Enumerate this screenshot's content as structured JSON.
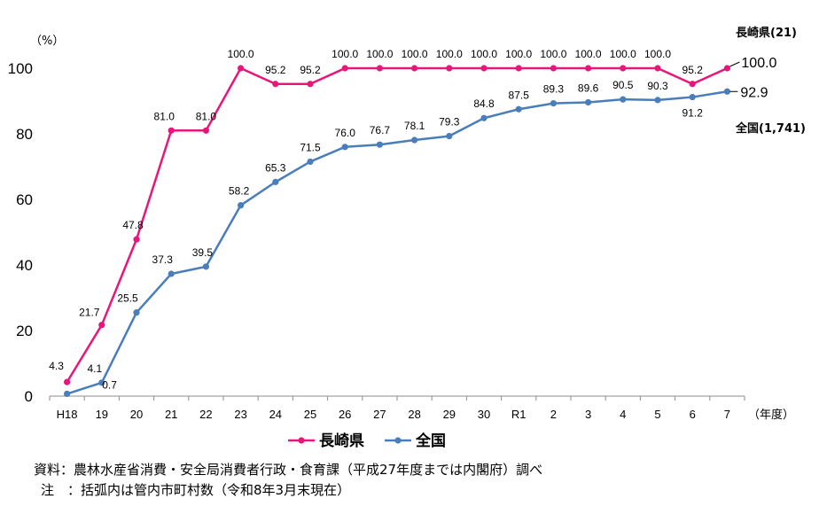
{
  "chart_data": {
    "type": "line",
    "ylim": [
      0,
      100
    ],
    "yticks": [
      0,
      20,
      40,
      60,
      80,
      100
    ],
    "y_unit": "（%）",
    "x_unit": "（年度）",
    "categories": [
      "H18",
      "19",
      "20",
      "21",
      "22",
      "23",
      "24",
      "25",
      "26",
      "27",
      "28",
      "29",
      "30",
      "R1",
      "2",
      "3",
      "4",
      "5",
      "6",
      "7"
    ],
    "series": [
      {
        "name": "長崎県",
        "end_label": "長崎県(21)",
        "color": "#e8167a",
        "values": [
          4.3,
          21.7,
          47.8,
          81.0,
          81.0,
          100.0,
          95.2,
          95.2,
          100.0,
          100.0,
          100.0,
          100.0,
          100.0,
          100.0,
          100.0,
          100.0,
          100.0,
          100.0,
          95.2,
          100.0
        ],
        "labels": [
          "4.3",
          "21.7",
          "47.8",
          "81.0",
          "81.0",
          "100.0",
          "95.2",
          "95.2",
          "100.0",
          "100.0",
          "100.0",
          "100.0",
          "100.0",
          "100.0",
          "100.0",
          "100.0",
          "100.0",
          "100.0",
          "95.2",
          "100.0"
        ]
      },
      {
        "name": "全国",
        "end_label": "全国(1,741)",
        "color": "#4a7ebb",
        "values": [
          0.7,
          4.1,
          25.5,
          37.3,
          39.5,
          58.2,
          65.3,
          71.5,
          76.0,
          76.7,
          78.1,
          79.3,
          84.8,
          87.5,
          89.3,
          89.6,
          90.5,
          90.3,
          91.2,
          92.9
        ],
        "labels": [
          "0.7",
          "4.1",
          "25.5",
          "37.3",
          "39.5",
          "58.2",
          "65.3",
          "71.5",
          "76.0",
          "76.7",
          "78.1",
          "79.3",
          "84.8",
          "87.5",
          "89.3",
          "89.6",
          "90.5",
          "90.3",
          "91.2",
          "92.9"
        ]
      }
    ],
    "legend_position": "bottom",
    "grid": false
  },
  "notes": {
    "source": "資料：農林水産省消費・安全局消費者行政・食育課（平成27年度までは内閣府）調べ",
    "note": "注　：括弧内は管内市町村数（令和8年3月末現在）"
  }
}
